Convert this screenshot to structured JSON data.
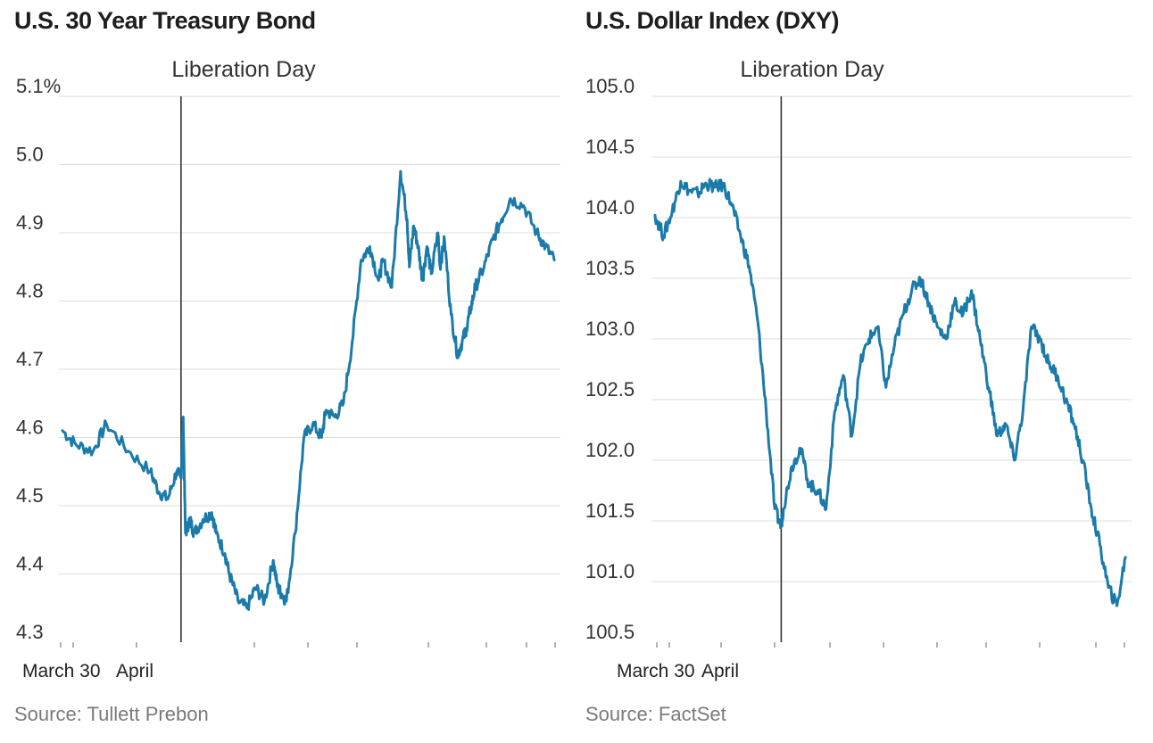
{
  "chart_data": [
    {
      "type": "line",
      "title": "U.S. 30 Year Treasury Bond",
      "source": "Source: Tullett Prebon",
      "ylim": [
        4.3,
        5.1
      ],
      "ytick_labels": [
        "5.1%",
        "5.0",
        "4.9",
        "4.8",
        "4.7",
        "4.6",
        "4.5",
        "4.4",
        "4.3"
      ],
      "xtick_labels": [
        "March 30",
        "April"
      ],
      "annotation": {
        "label": "Liberation Day",
        "day": 2.7
      },
      "x_days": [
        0,
        0.3,
        0.7,
        1,
        1.5,
        2,
        2.2,
        2.4,
        2.6,
        2.7,
        2.75,
        2.8,
        2.9,
        3,
        3.2,
        3.4,
        3.5,
        3.7,
        3.8,
        4,
        4.2,
        4.4,
        4.6,
        4.8,
        4.9,
        5,
        5.1,
        5.3,
        5.5,
        5.7,
        5.9,
        6,
        6.2,
        6.4,
        6.6,
        6.8,
        7,
        7.2,
        7.3,
        7.5,
        7.7,
        7.85,
        7.9,
        8,
        8.1,
        8.2,
        8.3,
        8.4,
        8.55,
        8.6,
        8.7,
        8.85,
        9,
        9.1,
        9.2,
        9.3,
        9.4,
        9.6,
        9.8,
        10,
        10.2,
        10.5,
        10.8,
        11,
        11.2
      ],
      "values": [
        4.61,
        4.59,
        4.58,
        4.62,
        4.58,
        4.55,
        4.52,
        4.51,
        4.55,
        4.54,
        4.63,
        4.46,
        4.48,
        4.46,
        4.48,
        4.49,
        4.46,
        4.43,
        4.4,
        4.36,
        4.35,
        4.38,
        4.36,
        4.42,
        4.38,
        4.37,
        4.36,
        4.46,
        4.6,
        4.62,
        4.6,
        4.64,
        4.63,
        4.65,
        4.74,
        4.86,
        4.88,
        4.83,
        4.86,
        4.82,
        4.99,
        4.92,
        4.85,
        4.91,
        4.88,
        4.83,
        4.88,
        4.84,
        4.9,
        4.85,
        4.89,
        4.78,
        4.72,
        4.74,
        4.76,
        4.79,
        4.82,
        4.85,
        4.89,
        4.92,
        4.95,
        4.94,
        4.9,
        4.88,
        4.86
      ]
    },
    {
      "type": "line",
      "title": "U.S. Dollar Index (DXY)",
      "source": "Source: FactSet",
      "ylim": [
        100.5,
        105.0
      ],
      "ytick_labels": [
        "105.0",
        "104.5",
        "104.0",
        "103.5",
        "103.0",
        "102.5",
        "102.0",
        "101.5",
        "101.0",
        "100.5"
      ],
      "xtick_labels": [
        "March 30",
        "April"
      ],
      "annotation": {
        "label": "Liberation Day",
        "day": 2.95
      },
      "x_days": [
        0,
        0.2,
        0.4,
        0.6,
        0.8,
        1,
        1.2,
        1.4,
        1.6,
        1.8,
        2,
        2.2,
        2.4,
        2.6,
        2.8,
        2.95,
        3,
        3.2,
        3.4,
        3.6,
        3.8,
        4,
        4.2,
        4.4,
        4.6,
        4.8,
        5,
        5.2,
        5.4,
        5.6,
        5.8,
        6,
        6.2,
        6.4,
        6.6,
        6.8,
        7,
        7.2,
        7.4,
        7.6,
        7.8,
        8,
        8.2,
        8.4,
        8.6,
        8.8,
        9,
        9.2,
        9.4,
        9.6,
        9.8,
        10,
        10.2,
        10.4,
        10.6,
        10.8,
        11
      ],
      "values": [
        104.02,
        103.85,
        104.05,
        104.3,
        104.22,
        104.2,
        104.28,
        104.25,
        104.27,
        104.1,
        103.85,
        103.6,
        103.15,
        102.4,
        101.6,
        101.45,
        101.6,
        101.95,
        102.1,
        101.8,
        101.75,
        101.6,
        102.4,
        102.7,
        102.2,
        102.8,
        103.0,
        103.1,
        102.6,
        102.95,
        103.2,
        103.4,
        103.5,
        103.3,
        103.1,
        103.0,
        103.3,
        103.2,
        103.4,
        103.0,
        102.6,
        102.2,
        102.3,
        102.0,
        102.4,
        103.1,
        103.0,
        102.8,
        102.7,
        102.5,
        102.3,
        102.0,
        101.6,
        101.3,
        100.95,
        100.8,
        101.2
      ]
    }
  ]
}
